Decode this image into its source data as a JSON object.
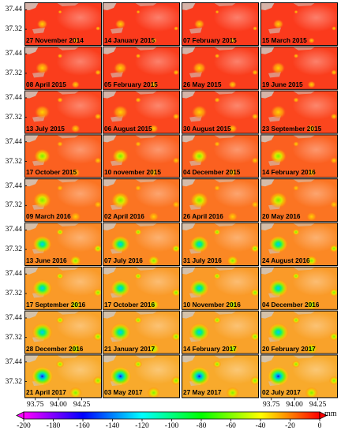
{
  "y_tick_labels": [
    "37.44",
    "37.32"
  ],
  "x_tick_labels": [
    "93.75",
    "94.00",
    "94.25"
  ],
  "columns": 4,
  "rows": 9,
  "panels": [
    "27 November 2014",
    "14 January 2015",
    "07 February 2015",
    "15 March 2015",
    "08 April 2015",
    "05 February 2015",
    "26 May 2015",
    "19 June 2015",
    "13 July 2015",
    "06 August 2015",
    "30 August 2015",
    "23 September 2015",
    "17 October 2015",
    "10 november 2015",
    "04 December 2015",
    "14 February 2016",
    "09 March 2016",
    "02 April 2016",
    "26 April 2016",
    "20 May 2016",
    "13 June 2016",
    "07 July 2016",
    "31 July 2016",
    "24 August 2016",
    "17 September 2016",
    "17 October 2016",
    "10 November 2016",
    "04 December 2016",
    "28 December 2016",
    "21 January 2017",
    "14 February 2017",
    "20 February 2017",
    "21 April 2017",
    "03 May 2017",
    "27 May 2017",
    "02 July 2017"
  ],
  "colorbar": {
    "unit": "mm",
    "ticks": [
      "-200",
      "-180",
      "-160",
      "-140",
      "-120",
      "-100",
      "-80",
      "-60",
      "-40",
      "-20",
      "0"
    ],
    "min": -200,
    "max": 0,
    "colors": [
      "#ff00ff",
      "#7f00ff",
      "#0000ff",
      "#0080ff",
      "#00ffff",
      "#00ff80",
      "#00ff00",
      "#80ff00",
      "#ffff00",
      "#ff8000",
      "#ff0000"
    ]
  },
  "colors": {
    "background_base": "#ff4a1e",
    "land_patch": "#cfc8c0",
    "panel_border": "#000000"
  }
}
